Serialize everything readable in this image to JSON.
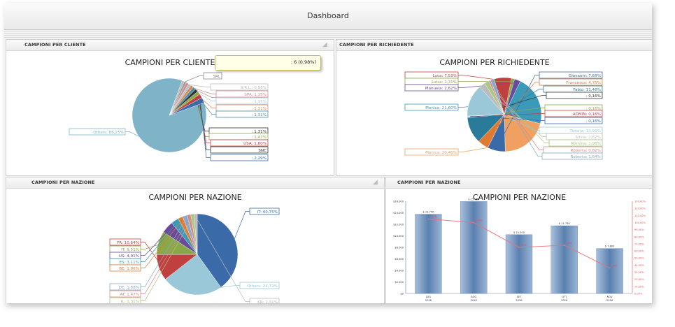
{
  "header": {
    "title": "Dashboard"
  },
  "panels": {
    "cliente": {
      "header": "CAMPIONI PER CLIENTE",
      "chart_data": {
        "type": "pie",
        "title": "CAMPIONI PER CLIENTE",
        "labels": [
          {
            "label": "Others",
            "value": "86,25%",
            "color": "#7fb4c8"
          },
          {
            "label": "SRL",
            "value": "",
            "color": "#888888"
          },
          {
            "label": "S.R.L.",
            "value": "0,98%",
            "color": "#bbbbbb"
          },
          {
            "label": "",
            "value": "0,98%",
            "color": "#999999"
          },
          {
            "label": "SPA",
            "value": "1,15%",
            "color": "#d48a8a"
          },
          {
            "label": "",
            "value": "1,15%",
            "color": "#aac8d8"
          },
          {
            "label": "",
            "value": "1,31%",
            "color": "#e08a55"
          },
          {
            "label": "",
            "value": "1,31%",
            "color": "#4a8fa8"
          },
          {
            "label": "",
            "value": "1,31%",
            "color": "#333333"
          },
          {
            "label": "",
            "value": "1,47%",
            "color": "#8aa848"
          },
          {
            "label": "USA",
            "value": "1,80%",
            "color": "#c04040"
          },
          {
            "label": "SNC",
            "value": "",
            "color": "#333333"
          },
          {
            "label": "",
            "value": "2,29%",
            "color": "#3a6aa8"
          }
        ],
        "tooltip": ": 6 (0,98%)"
      }
    },
    "richiedente": {
      "header": "CAMPIONI PER RICHIEDENTE",
      "chart_data": {
        "type": "pie",
        "title": "CAMPIONI PER RICHIEDENTE",
        "labels": [
          {
            "label": "Luca",
            "value": "7,53%",
            "color": "#c04040"
          },
          {
            "label": "Luisa",
            "value": "1,31%",
            "color": "#8aa848"
          },
          {
            "label": "Manuela",
            "value": "2,62%",
            "color": "#6a4a9a"
          },
          {
            "label": "Monica",
            "value": "21,60%",
            "color": "#3a9ab8"
          },
          {
            "label": "Monica",
            "value": "20,46%",
            "color": "#f0a060"
          },
          {
            "label": "Giovanni",
            "value": "7,69%",
            "color": "#3a6aa8"
          },
          {
            "label": "Francesca",
            "value": "4,75%",
            "color": "#e07a30"
          },
          {
            "label": "Fabio",
            "value": "11,46%",
            "color": "#2a7a9a"
          },
          {
            "label": "",
            "value": "0,16%",
            "color": "#333333"
          },
          {
            "label": "",
            "value": "0,16%",
            "color": "#8aa848"
          },
          {
            "label": "ADMIN",
            "value": "0,16%",
            "color": "#c04040"
          },
          {
            "label": "",
            "value": "0,16%",
            "color": "#3a6aa8"
          },
          {
            "label": "Tiziana",
            "value": "13,91%",
            "color": "#9ac8d8"
          },
          {
            "label": "Silvia",
            "value": "2,62%",
            "color": "#bbbbbb"
          },
          {
            "label": "Romina",
            "value": "1,96%",
            "color": "#a8c880"
          },
          {
            "label": "Roberta",
            "value": "0,82%",
            "color": "#d48a8a"
          },
          {
            "label": "Roberta",
            "value": "1,64%",
            "color": "#8aa8c8"
          }
        ]
      }
    },
    "nazione_pie": {
      "header": "CAMPIONI PER NAZIONE",
      "chart_data": {
        "type": "pie",
        "title": "CAMPIONI PER NAZIONE",
        "labels": [
          {
            "label": "IT",
            "value": "40,75%",
            "color": "#3a6aa8"
          },
          {
            "label": "Others",
            "value": "24,72%",
            "color": "#9ac8d8"
          },
          {
            "label": "FR",
            "value": "10,64%",
            "color": "#c04040"
          },
          {
            "label": "IT",
            "value": "9,51%",
            "color": "#8aa848"
          },
          {
            "label": "US",
            "value": "4,91%",
            "color": "#6a4a9a"
          },
          {
            "label": "ES",
            "value": "3,11%",
            "color": "#3a9ab8"
          },
          {
            "label": "BE",
            "value": "1,96%",
            "color": "#e07a30"
          },
          {
            "label": "DE",
            "value": "1,88%",
            "color": "#8aa8c8"
          },
          {
            "label": "AT",
            "value": "1,47%",
            "color": "#d48a8a"
          },
          {
            "label": "IL",
            "value": "1,31%",
            "color": "#a8c880"
          },
          {
            "label": "KR",
            "value": "1,31%",
            "color": "#bbbbbb"
          }
        ]
      }
    },
    "nazione_bar": {
      "header": "CAMPIONI PER NAZIONE",
      "chart_data": {
        "type": "bar",
        "title": "CAMPIONI PER NAZIONE",
        "categories": [
          "LUG\n2016",
          "AGO\n2016",
          "SET\n2016",
          "OTT\n2016",
          "NOV\n2016"
        ],
        "series": [
          {
            "values": [
              13750,
              15950,
              10200,
              11750,
              7800
            ],
            "color": "#5a88b8"
          },
          {
            "values": [
              1.05,
              1.0,
              0.65,
              0.68,
              0.36
            ],
            "color": "#e85050"
          }
        ],
        "bar_labels": [
          "$ 13.750",
          "$ 15.950",
          "$ 10.200",
          "$ 11.750",
          "$ 7.800"
        ],
        "line_labels": [
          "105%",
          "100%",
          "65%",
          "68%",
          "36%"
        ],
        "ylim_left": [
          0,
          16000
        ],
        "yticks_left": [
          "$0",
          "$2.000",
          "$4.000",
          "$6.000",
          "$8.000",
          "$10.000",
          "$12.000",
          "$14.000",
          "$16.000"
        ],
        "ylim_right": [
          0,
          1.3
        ],
        "yticks_right": [
          "0,00%",
          "10,00%",
          "20,00%",
          "30,00%",
          "40,00%",
          "50,00%",
          "60,00%",
          "70,00%",
          "80,00%",
          "90,00%",
          "100,00%",
          "110,00%",
          "120,00%",
          "130,00%"
        ]
      }
    }
  }
}
